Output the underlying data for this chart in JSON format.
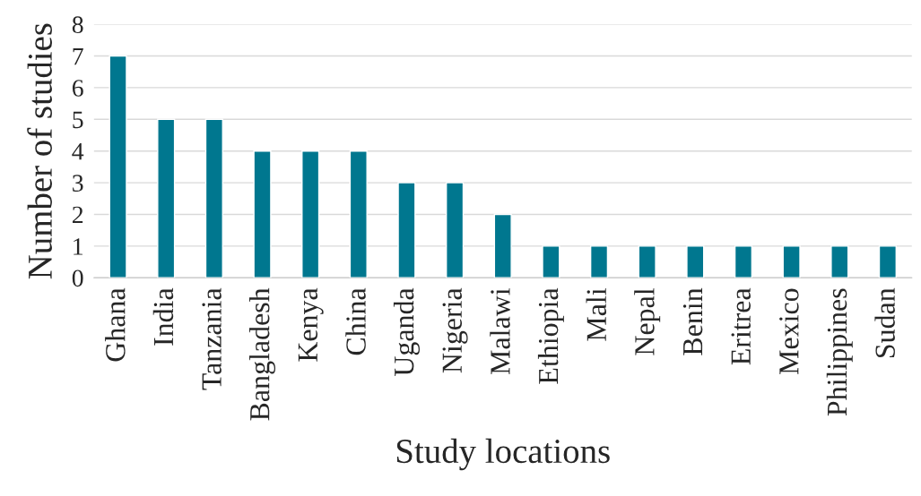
{
  "chart_data": {
    "type": "bar",
    "xlabel": "Study locations",
    "ylabel": "Number of studies",
    "categories": [
      "Ghana",
      "India",
      "Tanzania",
      "Bangladesh",
      "Kenya",
      "China",
      "Uganda",
      "Nigeria",
      "Malawi",
      "Ethiopia",
      "Mali",
      "Nepal",
      "Benin",
      "Eritrea",
      "Mexico",
      "Philippines",
      "Sudan"
    ],
    "values": [
      7,
      5,
      5,
      4,
      4,
      4,
      3,
      3,
      2,
      1,
      1,
      1,
      1,
      1,
      1,
      1,
      1
    ],
    "color": "#00778f",
    "ylim": [
      0,
      8
    ],
    "yticks": [
      0,
      1,
      2,
      3,
      4,
      5,
      6,
      7,
      8
    ],
    "grid": "y"
  }
}
